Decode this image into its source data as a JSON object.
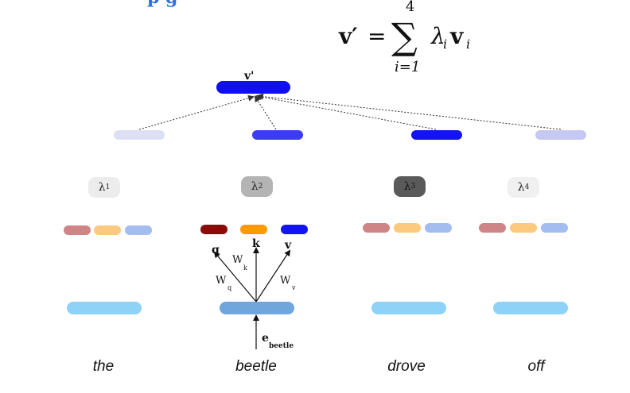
{
  "header": {
    "title_fragment": "p      g"
  },
  "formula": {
    "lhs": "v′",
    "equals": "=",
    "sum_upper": "4",
    "sum_lower": "i=1",
    "summand_lambda": "λ",
    "summand_sub": "i",
    "summand_v": "v"
  },
  "output": {
    "label": "v'",
    "color": "#1010ee"
  },
  "weighted_values": [
    {
      "color": "#dde0f5"
    },
    {
      "color": "#3c3cf0"
    },
    {
      "color": "#1414f0"
    },
    {
      "color": "#c6c8f4"
    }
  ],
  "weights": [
    {
      "symbol": "λ",
      "sub": "1",
      "color": "#ececec"
    },
    {
      "symbol": "λ",
      "sub": "2",
      "color": "#b4b4b4"
    },
    {
      "symbol": "λ",
      "sub": "3",
      "color": "#5a5a5a"
    },
    {
      "symbol": "λ",
      "sub": "4",
      "color": "#f0f0f0"
    }
  ],
  "qkv_colors": {
    "faded": [
      "#cf8585",
      "#fcc97e",
      "#a3bdf0"
    ],
    "active": [
      "#8b0a0a",
      "#ff9a00",
      "#1414f0"
    ]
  },
  "embedding_colors": {
    "normal": "#8fd2f7",
    "active": "#6fa6dc"
  },
  "projection": {
    "q": "q",
    "k": "k",
    "v": "v",
    "Wq": "W",
    "Wq_sub": "q",
    "Wk": "W",
    "Wk_sub": "k",
    "Wv": "W",
    "Wv_sub": "v"
  },
  "input_embedding": {
    "symbol": "e",
    "sub": "beetle"
  },
  "tokens": [
    "the",
    "beetle",
    "drove",
    "off"
  ]
}
